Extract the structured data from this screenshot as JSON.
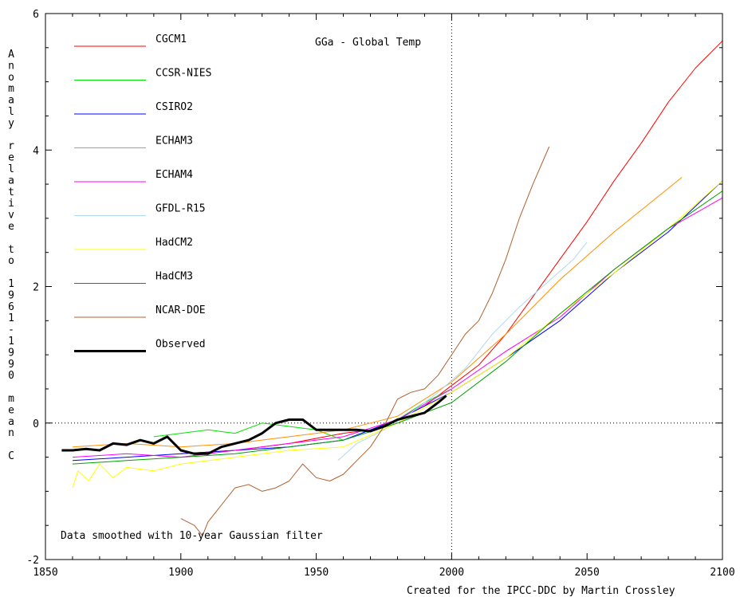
{
  "chart_data": {
    "type": "line",
    "title": "GGa - Global Temp",
    "ylabel": "Anomaly relative to 1961-1990 mean C",
    "xlabel": "",
    "xlim": [
      1850,
      2100
    ],
    "ylim": [
      -2,
      6
    ],
    "x_ticks": [
      "1850",
      "1900",
      "1950",
      "2000",
      "2050",
      "2100"
    ],
    "y_ticks": [
      "-2",
      "0",
      "2",
      "4",
      "6"
    ],
    "grid": false,
    "reference_lines": {
      "x": 2000,
      "y": 0,
      "style": "dotted"
    },
    "legend_position": "top-left",
    "annotation": "Data smoothed with 10-year Gaussian filter",
    "credit": "Created for the IPCC-DDC by Martin Crossley",
    "series": [
      {
        "name": "CGCM1",
        "color": "#ff0000",
        "width": 1,
        "x": [
          1900,
          1920,
          1940,
          1960,
          1970,
          1980,
          1990,
          2000,
          2010,
          2020,
          2030,
          2040,
          2050,
          2060,
          2070,
          2080,
          2090,
          2100
        ],
        "y": [
          -0.45,
          -0.4,
          -0.3,
          -0.15,
          -0.1,
          0.05,
          0.25,
          0.55,
          0.85,
          1.3,
          1.85,
          2.4,
          2.95,
          3.55,
          4.1,
          4.7,
          5.2,
          5.6
        ]
      },
      {
        "name": "CCSR-NIES",
        "color": "#00e600",
        "width": 1,
        "x": [
          1890,
          1900,
          1910,
          1920,
          1930,
          1940,
          1950,
          1960,
          1970,
          1980,
          1990,
          2000
        ],
        "y": [
          -0.2,
          -0.15,
          -0.1,
          -0.15,
          0.0,
          -0.05,
          -0.1,
          -0.25,
          -0.1,
          0.05,
          0.3,
          0.5
        ]
      },
      {
        "name": "CSIRO2",
        "color": "#0000ff",
        "width": 1,
        "x": [
          1860,
          1880,
          1900,
          1920,
          1940,
          1960,
          1980,
          2000,
          2020,
          2040,
          2060,
          2080,
          2100
        ],
        "y": [
          -0.55,
          -0.5,
          -0.45,
          -0.4,
          -0.35,
          -0.25,
          0.05,
          0.45,
          0.95,
          1.5,
          2.2,
          2.8,
          3.55
        ]
      },
      {
        "name": "ECHAM3",
        "color": "#ff9000",
        "width": 1,
        "x": [
          1860,
          1880,
          1900,
          1920,
          1940,
          1960,
          1980,
          2000,
          2020,
          2040,
          2060,
          2085
        ],
        "y": [
          -0.35,
          -0.3,
          -0.35,
          -0.3,
          -0.2,
          -0.1,
          0.1,
          0.6,
          1.3,
          2.1,
          2.8,
          3.6
        ]
      },
      {
        "name": "ECHAM4",
        "color": "#ff00ff",
        "width": 1,
        "x": [
          1860,
          1880,
          1900,
          1920,
          1940,
          1960,
          1980,
          2000,
          2020,
          2040,
          2060,
          2080,
          2100
        ],
        "y": [
          -0.5,
          -0.45,
          -0.5,
          -0.4,
          -0.3,
          -0.2,
          0.05,
          0.5,
          1.05,
          1.55,
          2.25,
          2.85,
          3.3
        ]
      },
      {
        "name": "GFDL-R15",
        "color": "#b0d8f0",
        "width": 1,
        "x": [
          1958,
          1965,
          1975,
          1985,
          1995,
          2005,
          2015,
          2025,
          2035,
          2045,
          2050
        ],
        "y": [
          -0.55,
          -0.3,
          -0.1,
          0.15,
          0.45,
          0.8,
          1.3,
          1.7,
          2.05,
          2.4,
          2.65
        ]
      },
      {
        "name": "HadCM2",
        "color": "#ffff00",
        "width": 1,
        "x": [
          1860,
          1862,
          1866,
          1870,
          1875,
          1880,
          1890,
          1900,
          1920,
          1940,
          1960,
          1980,
          2000,
          2020,
          2040,
          2060,
          2080,
          2100
        ],
        "y": [
          -0.95,
          -0.7,
          -0.85,
          -0.6,
          -0.8,
          -0.65,
          -0.7,
          -0.6,
          -0.5,
          -0.4,
          -0.35,
          0.0,
          0.45,
          0.95,
          1.6,
          2.2,
          2.85,
          3.55
        ]
      },
      {
        "name": "HadCM3",
        "color": "#00a000",
        "width": 1,
        "x": [
          1860,
          1880,
          1900,
          1920,
          1940,
          1960,
          1980,
          2000,
          2020,
          2040,
          2060,
          2080,
          2100
        ],
        "y": [
          -0.6,
          -0.55,
          -0.5,
          -0.45,
          -0.35,
          -0.25,
          0.0,
          0.3,
          0.9,
          1.6,
          2.25,
          2.85,
          3.4
        ]
      },
      {
        "name": "NCAR-DOE",
        "color": "#b06030",
        "width": 1,
        "x": [
          1900,
          1905,
          1908,
          1910,
          1915,
          1920,
          1925,
          1930,
          1935,
          1940,
          1945,
          1950,
          1955,
          1960,
          1965,
          1970,
          1975,
          1980,
          1985,
          1990,
          1995,
          2000,
          2005,
          2010,
          2015,
          2020,
          2025,
          2030,
          2036
        ],
        "y": [
          -1.4,
          -1.5,
          -1.65,
          -1.45,
          -1.2,
          -0.95,
          -0.9,
          -1.0,
          -0.95,
          -0.85,
          -0.6,
          -0.8,
          -0.85,
          -0.75,
          -0.55,
          -0.35,
          -0.05,
          0.35,
          0.45,
          0.5,
          0.7,
          1.0,
          1.3,
          1.5,
          1.9,
          2.4,
          3.0,
          3.5,
          4.05
        ]
      },
      {
        "name": "Observed",
        "color": "#000000",
        "width": 3,
        "x": [
          1856,
          1860,
          1865,
          1870,
          1875,
          1880,
          1885,
          1890,
          1895,
          1900,
          1905,
          1910,
          1915,
          1920,
          1925,
          1930,
          1935,
          1940,
          1945,
          1950,
          1955,
          1960,
          1965,
          1970,
          1975,
          1980,
          1985,
          1990,
          1995,
          1998
        ],
        "y": [
          -0.4,
          -0.4,
          -0.38,
          -0.4,
          -0.3,
          -0.32,
          -0.25,
          -0.3,
          -0.2,
          -0.4,
          -0.45,
          -0.45,
          -0.35,
          -0.3,
          -0.25,
          -0.15,
          0.0,
          0.05,
          0.05,
          -0.1,
          -0.1,
          -0.1,
          -0.1,
          -0.12,
          -0.05,
          0.05,
          0.1,
          0.15,
          0.3,
          0.4
        ]
      }
    ]
  }
}
